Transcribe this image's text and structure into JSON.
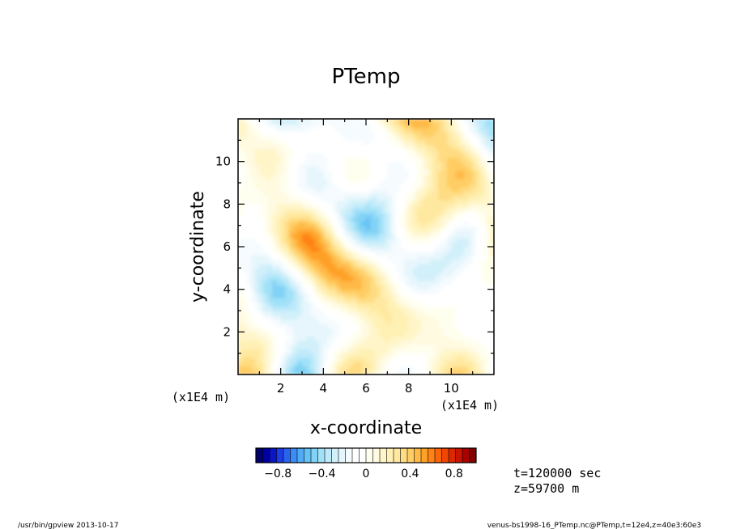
{
  "chart_data": {
    "type": "heatmap",
    "title": "PTemp",
    "xlabel": "x-coordinate",
    "ylabel": "y-coordinate",
    "xlim": [
      0,
      12
    ],
    "ylim": [
      0,
      12
    ],
    "x_ticks": [
      2,
      4,
      6,
      8,
      10
    ],
    "y_ticks": [
      2,
      4,
      6,
      8,
      10
    ],
    "x_tick_labels": [
      "2",
      "4",
      "6",
      "8",
      "10"
    ],
    "y_tick_labels": [
      "2",
      "4",
      "6",
      "8",
      "10"
    ],
    "x_unit": "(x1E4 m)",
    "y_unit": "(x1E4 m)",
    "value_range": [
      -1.0,
      1.0
    ],
    "colorbar": {
      "min": -1.0,
      "max": 1.0,
      "tick_values": [
        -0.8,
        -0.4,
        0,
        0.4,
        0.8
      ],
      "tick_labels": [
        "−0.8",
        "−0.4",
        "0",
        "0.4",
        "0.8"
      ],
      "colors": [
        "#00006e",
        "#0000a0",
        "#0a14c8",
        "#1e3ce6",
        "#2864f0",
        "#3c8cf5",
        "#50aaf5",
        "#64c3f5",
        "#82d2f5",
        "#a0e1f8",
        "#bee9fa",
        "#d2f0fa",
        "#e6f6fc",
        "#f5fbfe",
        "#ffffff",
        "#ffffff",
        "#fffff0",
        "#fffae0",
        "#fff5c8",
        "#fff0b4",
        "#ffe8a0",
        "#ffdc82",
        "#ffcd64",
        "#ffb946",
        "#ffa028",
        "#ff8214",
        "#fa640a",
        "#f04600",
        "#dc2800",
        "#c81400",
        "#aa0000",
        "#820000"
      ]
    },
    "annotations": [
      "t=120000 sec",
      "z=59700  m"
    ]
  },
  "footer": {
    "left": "/usr/bin/gpview   2013-10-17",
    "right": "venus-bs1998-16_PTemp.nc@PTemp,t=12e4,z=40e3:60e3"
  }
}
